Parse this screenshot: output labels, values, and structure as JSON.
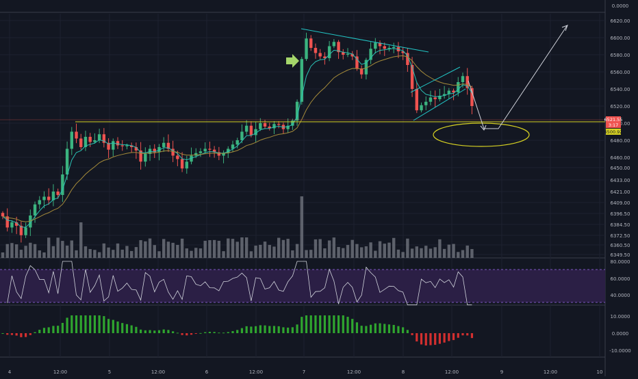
{
  "theme": {
    "background": "#131722",
    "grid": "#1e2230",
    "axis_text": "#b2b5be",
    "up": "#26a69a",
    "up_body": "#3bb37f",
    "down": "#ef5350",
    "ma_fast": "#2bc0b4",
    "ma_slow": "#a58b3a",
    "volume": "#6b6f78",
    "rsi_line": "#d1d4dc",
    "rsi_band": "#2b1f45",
    "rsi_band_border": "#7e57c2",
    "hist_up": "#2fa52f",
    "hist_down": "#d32f2f",
    "support_line": "#d7d222",
    "trendline": "#22c6c6",
    "arrow_marker": "#a5d66b",
    "forecast_arrows": "#d1d4dc",
    "price_tag_bg": "#ef5350",
    "price_tag_bg2": "#d7d222"
  },
  "chart_data": {
    "type": "candlestick",
    "price_axis_labels": [
      "0.0000",
      "6620.00",
      "6600.00",
      "6580.00",
      "6560.00",
      "6540.00",
      "6520.00",
      "6500.00",
      "6480.00",
      "6460.00",
      "6450.00",
      "6433.00",
      "6421.00",
      "6409.00",
      "6396.50",
      "6384.50",
      "6372.50",
      "6360.50",
      "6349.50"
    ],
    "rsi_axis_labels": [
      "80.0000",
      "60.0000",
      "40.0000"
    ],
    "histogram_axis_labels": [
      "10.0000",
      "0.0000",
      "-10.0000"
    ],
    "time_axis_labels": [
      "4",
      "12:00",
      "5",
      "12:00",
      "6",
      "12:00",
      "7",
      "12:00",
      "8",
      "12:00",
      "9",
      "12:00",
      "10"
    ],
    "current_price_tags": [
      "6521.55",
      "3:17",
      "6500.92"
    ],
    "support_level": 6500.92,
    "close_path": [
      6391,
      6378,
      6384,
      6380,
      6369,
      6378,
      6392,
      6405,
      6410,
      6414,
      6410,
      6420,
      6416,
      6440,
      6470,
      6490,
      6482,
      6472,
      6484,
      6478,
      6480,
      6487,
      6477,
      6469,
      6479,
      6474,
      6473,
      6474,
      6472,
      6468,
      6455,
      6464,
      6470,
      6466,
      6472,
      6477,
      6470,
      6462,
      6458,
      6447,
      6455,
      6462,
      6465,
      6467,
      6470,
      6469,
      6466,
      6462,
      6465,
      6470,
      6475,
      6480,
      6490,
      6497,
      6486,
      6493,
      6500,
      6496,
      6494,
      6499,
      6498,
      6493,
      6497,
      6503,
      6525,
      6575,
      6599,
      6588,
      6582,
      6578,
      6576,
      6590,
      6595,
      6583,
      6580,
      6581,
      6578,
      6564,
      6557,
      6574,
      6587,
      6594,
      6590,
      6587,
      6588,
      6589,
      6584,
      6582,
      6568,
      6540,
      6515,
      6521,
      6525,
      6530,
      6528,
      6532,
      6534,
      6538,
      6536,
      6548,
      6555,
      6541,
      6520
    ]
  },
  "annotations": {
    "forecast_circle": "target zone",
    "marker": "entry"
  }
}
